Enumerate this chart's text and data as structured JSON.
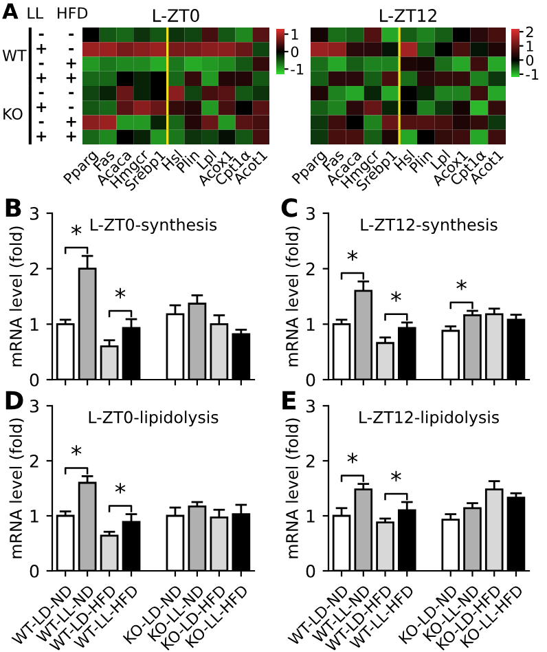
{
  "chart_data": [
    {
      "type": "heatmap",
      "title": "L-ZT0",
      "categories": [
        "Pparg",
        "Fas",
        "Acaca",
        "Hmgcr",
        "Srebp1",
        "Hsl",
        "Plin",
        "Lpl",
        "Acox1",
        "Cpt1α",
        "Acot1"
      ],
      "y_categories": [
        "-",
        "+",
        "-",
        "+",
        "-",
        "+",
        "-",
        "+"
      ],
      "y2_categories": [
        "-",
        "-",
        "+",
        "+",
        "-",
        "-",
        "+",
        "+"
      ],
      "cells": [
        [
          0,
          -0.5,
          -0.6,
          -0.3,
          -0.5,
          -0.3,
          -0.4,
          0.4,
          -0.5,
          -0.8,
          0.5
        ],
        [
          0.9,
          0.9,
          0.7,
          0.8,
          0.9,
          0.7,
          0.7,
          0.8,
          0.8,
          0.6,
          -0.4
        ],
        [
          -0.9,
          -0.7,
          -0.8,
          -0.8,
          -1,
          -0.7,
          -1,
          -0.9,
          -0.8,
          -0.5,
          0.3
        ],
        [
          -0.6,
          -0.6,
          0,
          -0.2,
          0,
          -0.6,
          0.3,
          -0.9,
          0.2,
          0.2,
          -0.5
        ],
        [
          -0.4,
          -0.2,
          0.6,
          -0.2,
          0,
          0.8,
          -0.4,
          0.4,
          0.5,
          -0.5,
          -0.3
        ],
        [
          -0.5,
          -0.6,
          0.5,
          0.8,
          0.6,
          0.3,
          0.2,
          -0.9,
          0.4,
          0,
          0.5
        ],
        [
          0.8,
          0.9,
          -0.9,
          -0.9,
          -0.2,
          -0.6,
          0.2,
          0.6,
          -0.9,
          0.5,
          0.4
        ],
        [
          -0.6,
          -0.8,
          0,
          -0.2,
          -0.9,
          -0.7,
          -0.3,
          -0.4,
          -0.1,
          -0.5,
          0.4
        ]
      ],
      "clim": [
        -1.3,
        1.3
      ],
      "cticks": [
        -1,
        0,
        1
      ],
      "annotations": [
        "A",
        "LL",
        "HFD",
        "WT",
        "KO"
      ]
    },
    {
      "type": "heatmap",
      "title": "L-ZT12",
      "categories": [
        "Pparg",
        "Fas",
        "Acaca",
        "Hmgcr",
        "Srebp1",
        "Hsl",
        "Plin",
        "Lpl",
        "Acox1",
        "Cpt1α",
        "Acot1"
      ],
      "cells": [
        [
          0.2,
          -0.6,
          -0.5,
          0.8,
          -0.9,
          -0.5,
          -0.7,
          -0.5,
          0,
          0.4,
          0.7
        ],
        [
          1.5,
          1.4,
          0.4,
          0.4,
          -0.1,
          1.6,
          -0.5,
          0,
          0.7,
          -0.1,
          0.3
        ],
        [
          -0.6,
          -0.9,
          -0.5,
          -0.7,
          -0.7,
          0.3,
          0.2,
          -0.6,
          -0.9,
          0.6,
          -0.9
        ],
        [
          -0.5,
          0.4,
          0.4,
          -0.5,
          0.7,
          -0.6,
          0.4,
          0.5,
          0.5,
          -0.7,
          -0.3
        ],
        [
          0.3,
          -0.7,
          -0.9,
          -0.2,
          -0.9,
          0,
          -0.2,
          -0.7,
          -0.7,
          0.6,
          -0.9
        ],
        [
          -0.5,
          -0.7,
          0.4,
          1,
          -0.2,
          0,
          -0.7,
          -0.3,
          0.2,
          -1,
          0.5
        ],
        [
          -0.3,
          0.6,
          0,
          -0.7,
          1,
          0.8,
          0.8,
          0.7,
          0.3,
          0.5,
          -0.3
        ],
        [
          -0.3,
          0.7,
          0.7,
          -0.5,
          0.3,
          -0.9,
          0,
          0.5,
          0.6,
          -0.9,
          0.6
        ]
      ],
      "y_categories": [
        null,
        null,
        null,
        null,
        null,
        null,
        null,
        null
      ],
      "clim": [
        -1.2,
        2.2
      ],
      "cticks": [
        -1,
        0,
        1,
        2
      ],
      "tick_labels": "x"
    },
    {
      "type": "bar",
      "title": "L-ZT0-synthesis",
      "ylabel": "mRNA level (fold)",
      "categories": [
        "WT-LD-ND",
        "WT-LL-ND",
        "WT-LD-HFD",
        "WT-LL-HFD",
        null,
        "KO-LD-ND",
        "KO-LL-ND",
        "KO-LD-HFD",
        "KO-LL-HFD"
      ],
      "values": [
        1.0,
        2.0,
        0.6,
        0.93,
        null,
        1.18,
        1.37,
        1.0,
        0.82
      ],
      "errors": [
        0.08,
        0.23,
        0.11,
        0.16,
        null,
        0.16,
        0.15,
        0.16,
        0.08
      ],
      "colors": [
        "#ffffff",
        "#b0b0b0",
        "#d8d8d8",
        "#000000",
        null,
        "#ffffff",
        "#b0b0b0",
        "#d8d8d8",
        "#000000"
      ],
      "ylim": [
        0,
        3
      ],
      "yticks": [
        0,
        1,
        2,
        3
      ],
      "tick_labels": "y",
      "annotations": [
        "B",
        {
          "text": "*",
          "x": "WT-LL-ND",
          "y": 2.23
        },
        {
          "text": "*",
          "x": "WT-LL-HFD",
          "y": 1.09
        }
      ]
    },
    {
      "type": "bar",
      "title": "L-ZT12-synthesis",
      "ylabel": "mRNA level (fold)",
      "categories": [
        "WT-LD-ND",
        "WT-LL-ND",
        "WT-LD-HFD",
        "WT-LL-HFD",
        null,
        "KO-LD-ND",
        "KO-LL-ND",
        "KO-LD-HFD",
        "KO-LL-HFD"
      ],
      "values": [
        1.0,
        1.6,
        0.66,
        0.93,
        null,
        0.88,
        1.16,
        1.18,
        1.08
      ],
      "errors": [
        0.08,
        0.17,
        0.1,
        0.1,
        null,
        0.08,
        0.08,
        0.1,
        0.09
      ],
      "colors": [
        "#ffffff",
        "#b0b0b0",
        "#d8d8d8",
        "#000000",
        null,
        "#ffffff",
        "#b0b0b0",
        "#d8d8d8",
        "#000000"
      ],
      "ylim": [
        0,
        3
      ],
      "yticks": [
        0,
        1,
        2,
        3
      ],
      "tick_labels": "y",
      "annotations": [
        "C",
        {
          "text": "*",
          "x": "WT-LL-ND",
          "y": 1.77
        },
        {
          "text": "*",
          "x": "WT-LL-HFD",
          "y": 1.03
        },
        {
          "text": "*",
          "x": "KO-LL-ND",
          "y": 1.24
        }
      ]
    },
    {
      "type": "bar",
      "title": "L-ZT0-lipidolysis",
      "ylabel": "mRNA level (fold)",
      "categories": [
        "WT-LD-ND",
        "WT-LL-ND",
        "WT-LD-HFD",
        "WT-LL-HFD",
        null,
        "KO-LD-ND",
        "KO-LL-ND",
        "KO-LD-HFD",
        "KO-LL-HFD"
      ],
      "values": [
        1.0,
        1.6,
        0.64,
        0.89,
        null,
        1.0,
        1.17,
        0.97,
        1.03
      ],
      "errors": [
        0.08,
        0.12,
        0.07,
        0.14,
        null,
        0.15,
        0.08,
        0.14,
        0.17
      ],
      "colors": [
        "#ffffff",
        "#b0b0b0",
        "#d8d8d8",
        "#000000",
        null,
        "#ffffff",
        "#b0b0b0",
        "#d8d8d8",
        "#000000"
      ],
      "ylim": [
        0,
        3
      ],
      "yticks": [
        0,
        1,
        2,
        3
      ],
      "annotations": [
        "D",
        {
          "text": "*",
          "x": "WT-LL-ND",
          "y": 1.72
        },
        {
          "text": "*",
          "x": "WT-LL-HFD",
          "y": 1.03
        }
      ]
    },
    {
      "type": "bar",
      "title": "L-ZT12-lipidolysis",
      "ylabel": "mRNA level (fold)",
      "categories": [
        "WT-LD-ND",
        "WT-LL-ND",
        "WT-LD-HFD",
        "WT-LL-HFD",
        null,
        "KO-LD-ND",
        "KO-LL-ND",
        "KO-LD-HFD",
        "KO-LL-HFD"
      ],
      "values": [
        1.0,
        1.48,
        0.88,
        1.1,
        null,
        0.93,
        1.14,
        1.48,
        1.33
      ],
      "errors": [
        0.14,
        0.1,
        0.07,
        0.15,
        null,
        0.1,
        0.09,
        0.15,
        0.08
      ],
      "colors": [
        "#ffffff",
        "#b0b0b0",
        "#d8d8d8",
        "#000000",
        null,
        "#ffffff",
        "#b0b0b0",
        "#d8d8d8",
        "#000000"
      ],
      "ylim": [
        0,
        3
      ],
      "yticks": [
        0,
        1,
        2,
        3
      ],
      "annotations": [
        "E",
        {
          "text": "*",
          "x": "WT-LL-ND",
          "y": 1.58
        },
        {
          "text": "*",
          "x": "WT-LL-HFD",
          "y": 1.25
        }
      ]
    }
  ]
}
